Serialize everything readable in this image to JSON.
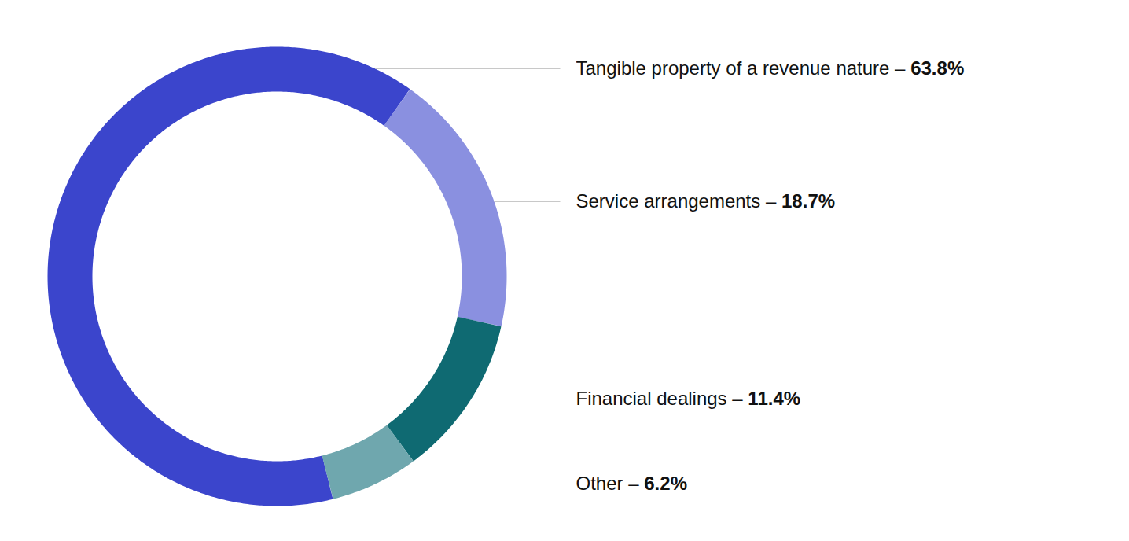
{
  "chart_data": {
    "type": "pie",
    "categories": [
      "Tangible property of a revenue nature –",
      "Service arrangements –",
      "Financial dealings –",
      "Other –"
    ],
    "values": [
      63.8,
      18.7,
      11.4,
      6.2
    ],
    "value_labels": [
      "63.8%",
      "18.7%",
      "11.4%",
      "6.2%"
    ],
    "colors": [
      "#3b45cc",
      "#8a90e0",
      "#0f6a72",
      "#6fa7ae"
    ],
    "data_labels": true
  }
}
